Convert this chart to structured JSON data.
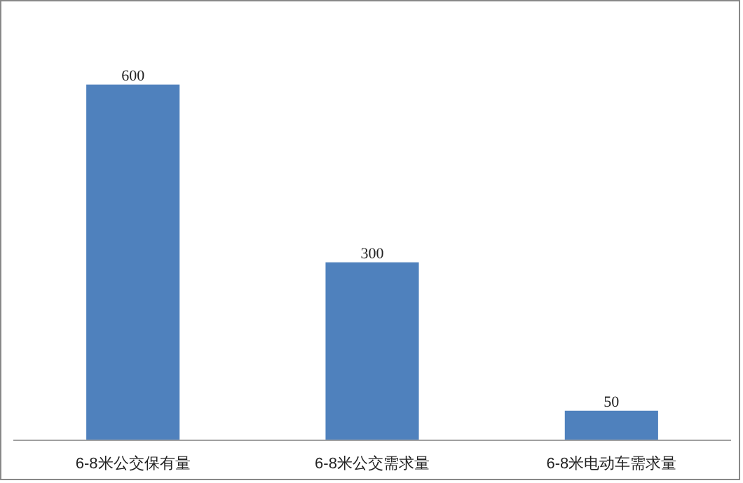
{
  "chart_data": {
    "type": "bar",
    "categories": [
      "6-8米公交保有量",
      "6-8米公交需求量",
      "6-8米电动车需求量"
    ],
    "values": [
      600,
      300,
      50
    ],
    "color": "#4f81bd",
    "data_labels": true
  }
}
